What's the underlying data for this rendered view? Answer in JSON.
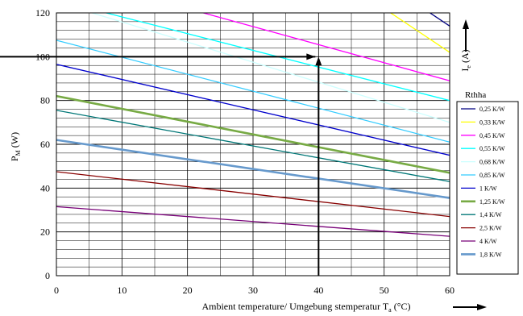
{
  "chart_data": {
    "type": "line",
    "xlabel": "Ambient temperature/ Umgebung stemperatur T",
    "xlabel_sub": "a",
    "xlabel_unit": " (°C)",
    "ylabel": "P",
    "ylabel_sub": "M",
    "ylabel_unit": " (W)",
    "right_label": "I",
    "right_label_sub": "e",
    "right_label_unit": " (A)",
    "xlim": [
      0,
      60
    ],
    "ylim": [
      0,
      120
    ],
    "x_ticks": [
      "0",
      "10",
      "20",
      "30",
      "40",
      "50",
      "60"
    ],
    "y_ticks": [
      "0",
      "20",
      "40",
      "60",
      "80",
      "100",
      "120"
    ],
    "grid": true,
    "legend": {
      "title": "Rthha",
      "position": "right"
    },
    "series": [
      {
        "name": "0,25 K/W",
        "color": "#000080",
        "width": 1.3,
        "points": [
          [
            56,
            122
          ],
          [
            60,
            114
          ]
        ]
      },
      {
        "name": "0,33 K/W",
        "color": "#FFFF00",
        "width": 1.3,
        "points": [
          [
            50,
            122
          ],
          [
            60,
            102
          ]
        ]
      },
      {
        "name": "0,45 K/W",
        "color": "#FF00FF",
        "width": 1.3,
        "points": [
          [
            20,
            122
          ],
          [
            60,
            89
          ]
        ]
      },
      {
        "name": "0,55 K/W",
        "color": "#00FFFF",
        "width": 1.3,
        "points": [
          [
            5,
            122
          ],
          [
            60,
            80
          ]
        ]
      },
      {
        "name": "0,68 K/W",
        "color": "#CCFFFF",
        "width": 1.3,
        "points": [
          [
            0,
            125
          ],
          [
            60,
            70
          ]
        ]
      },
      {
        "name": "0,85 K/W",
        "color": "#33CCFF",
        "width": 1.3,
        "points": [
          [
            0,
            107.5
          ],
          [
            60,
            61
          ]
        ]
      },
      {
        "name": "1 K/W",
        "color": "#0000CC",
        "width": 1.3,
        "points": [
          [
            0,
            96.5
          ],
          [
            60,
            55
          ]
        ]
      },
      {
        "name": "1,25 K/W",
        "color": "#77AA44",
        "width": 2.6,
        "points": [
          [
            0,
            82
          ],
          [
            60,
            47
          ]
        ]
      },
      {
        "name": "1,4 K/W",
        "color": "#007777",
        "width": 1.3,
        "points": [
          [
            0,
            75.5
          ],
          [
            60,
            43
          ]
        ]
      },
      {
        "name": "2,5 K/W",
        "color": "#880000",
        "width": 1.3,
        "points": [
          [
            0,
            47.5
          ],
          [
            60,
            27
          ]
        ]
      },
      {
        "name": "4 K/W",
        "color": "#770077",
        "width": 1.3,
        "points": [
          [
            0,
            31.5
          ],
          [
            60,
            18
          ]
        ]
      },
      {
        "name": "1,8 K/W",
        "color": "#6699CC",
        "width": 2.6,
        "points": [
          [
            0,
            62
          ],
          [
            60,
            35.5
          ]
        ]
      }
    ],
    "marker": {
      "x": 40,
      "y": 100
    }
  }
}
